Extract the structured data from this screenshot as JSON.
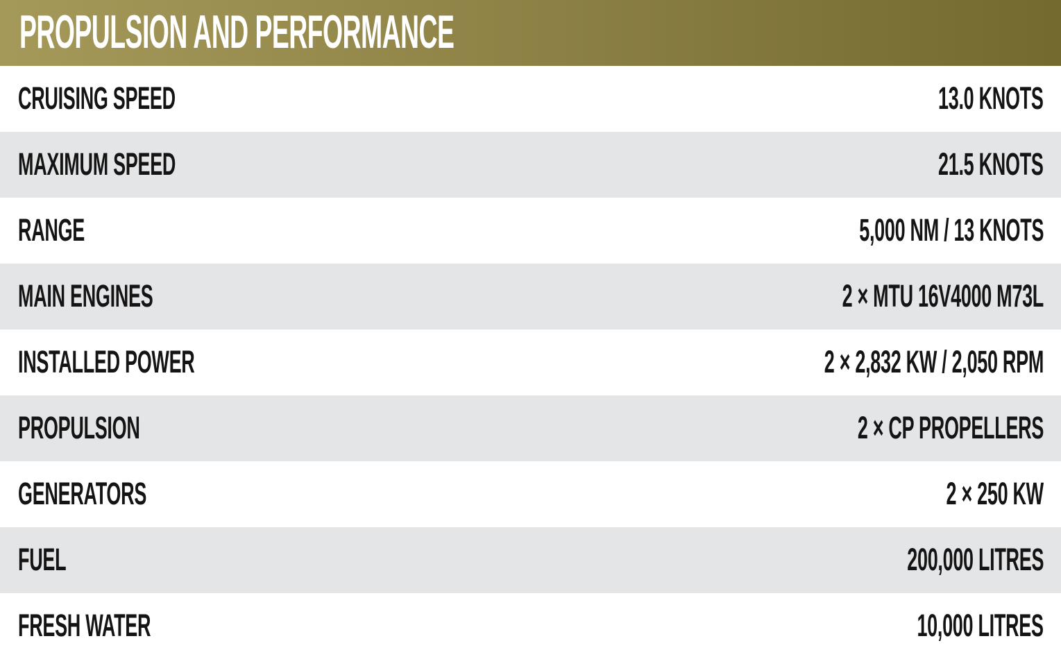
{
  "header": {
    "title": "PROPULSION AND PERFORMANCE",
    "background_gradient_left": "#a5995a",
    "background_gradient_right": "#746a2e",
    "text_color": "#ffffff"
  },
  "table": {
    "colors": {
      "row_background": "#ffffff",
      "row_alt_background": "#e4e5e6",
      "text": "#141414"
    },
    "rows": [
      {
        "label": "CRUISING SPEED",
        "value": "13.0 KNOTS"
      },
      {
        "label": "MAXIMUM SPEED",
        "value": "21.5 KNOTS"
      },
      {
        "label": "RANGE",
        "value": "5,000 NM / 13 KNOTS"
      },
      {
        "label": "MAIN ENGINES",
        "value": "2 × MTU 16V4000 M73L"
      },
      {
        "label": "INSTALLED POWER",
        "value": "2 × 2,832 KW / 2,050 RPM"
      },
      {
        "label": "PROPULSION",
        "value": "2 × CP PROPELLERS"
      },
      {
        "label": "GENERATORS",
        "value": "2 × 250 KW"
      },
      {
        "label": "FUEL",
        "value": "200,000 LITRES"
      },
      {
        "label": "FRESH WATER",
        "value": "10,000 LITRES"
      }
    ]
  }
}
